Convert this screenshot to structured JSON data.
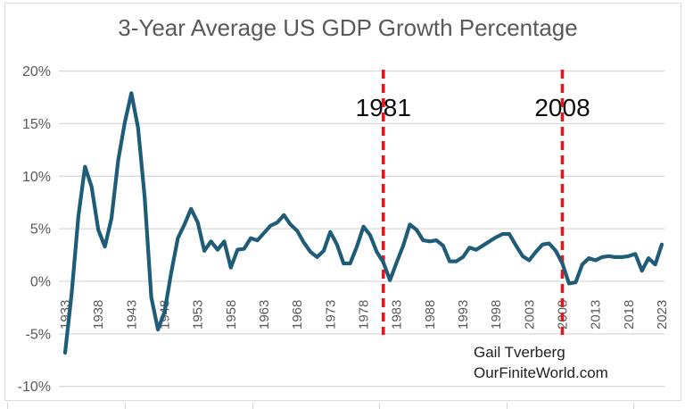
{
  "title": "3-Year Average US GDP Growth Percentage",
  "attribution": {
    "author": "Gail Tverberg",
    "site": "OurFiniteWorld.com"
  },
  "colors": {
    "series_line": "#1f5c78",
    "reference_line": "#e81616",
    "gridline": "#d9d9d9",
    "axis_text": "#595959",
    "title_text": "#595959",
    "annotation_text": "#0d0d0d"
  },
  "chart_data": {
    "type": "line",
    "title": "3-Year Average US GDP Growth Percentage",
    "xlabel": "",
    "ylabel": "",
    "grid": true,
    "legend_position": "none",
    "ylim": [
      -10,
      20
    ],
    "y_ticks": [
      20,
      15,
      10,
      5,
      0,
      -5,
      -10
    ],
    "y_tick_labels": [
      "20%",
      "15%",
      "10%",
      "5%",
      "0%",
      "-5%",
      "-10%"
    ],
    "x_ticks": [
      1933,
      1938,
      1943,
      1948,
      1953,
      1958,
      1963,
      1968,
      1973,
      1978,
      1983,
      1988,
      1993,
      1998,
      2003,
      2008,
      2013,
      2018,
      2023
    ],
    "x": [
      1933,
      1934,
      1935,
      1936,
      1937,
      1938,
      1939,
      1940,
      1941,
      1942,
      1943,
      1944,
      1945,
      1946,
      1947,
      1948,
      1949,
      1950,
      1951,
      1952,
      1953,
      1954,
      1955,
      1956,
      1957,
      1958,
      1959,
      1960,
      1961,
      1962,
      1963,
      1964,
      1965,
      1966,
      1967,
      1968,
      1969,
      1970,
      1971,
      1972,
      1973,
      1974,
      1975,
      1976,
      1977,
      1978,
      1979,
      1980,
      1981,
      1982,
      1983,
      1984,
      1985,
      1986,
      1987,
      1988,
      1989,
      1990,
      1991,
      1992,
      1993,
      1994,
      1995,
      1996,
      1997,
      1998,
      1999,
      2000,
      2001,
      2002,
      2003,
      2004,
      2005,
      2006,
      2007,
      2008,
      2009,
      2010,
      2011,
      2012,
      2013,
      2014,
      2015,
      2016,
      2017,
      2018,
      2019,
      2020,
      2021,
      2022,
      2023
    ],
    "values": [
      -6.8,
      -1.1,
      6.2,
      10.9,
      9.0,
      4.9,
      3.3,
      6.0,
      11.5,
      15.1,
      17.9,
      14.6,
      8.0,
      -1.5,
      -4.6,
      -2.9,
      0.8,
      4.1,
      5.4,
      6.9,
      5.6,
      2.9,
      3.8,
      3.0,
      3.8,
      1.3,
      3.0,
      3.1,
      4.1,
      3.9,
      4.6,
      5.3,
      5.6,
      6.3,
      5.4,
      4.8,
      3.7,
      2.8,
      2.3,
      2.9,
      4.7,
      3.5,
      1.7,
      1.7,
      3.3,
      5.2,
      4.4,
      2.8,
      1.8,
      0.1,
      1.8,
      3.4,
      5.4,
      4.9,
      3.9,
      3.8,
      3.9,
      3.4,
      1.9,
      1.9,
      2.3,
      3.2,
      3.0,
      3.4,
      3.8,
      4.2,
      4.5,
      4.5,
      3.4,
      2.4,
      2.0,
      2.8,
      3.5,
      3.6,
      2.9,
      1.7,
      -0.2,
      -0.1,
      1.6,
      2.2,
      2.0,
      2.3,
      2.4,
      2.3,
      2.3,
      2.4,
      2.6,
      1.0,
      2.2,
      1.6,
      3.5
    ],
    "annotations": [
      {
        "year": 1981,
        "label": "1981"
      },
      {
        "year": 2008,
        "label": "2008"
      }
    ]
  }
}
